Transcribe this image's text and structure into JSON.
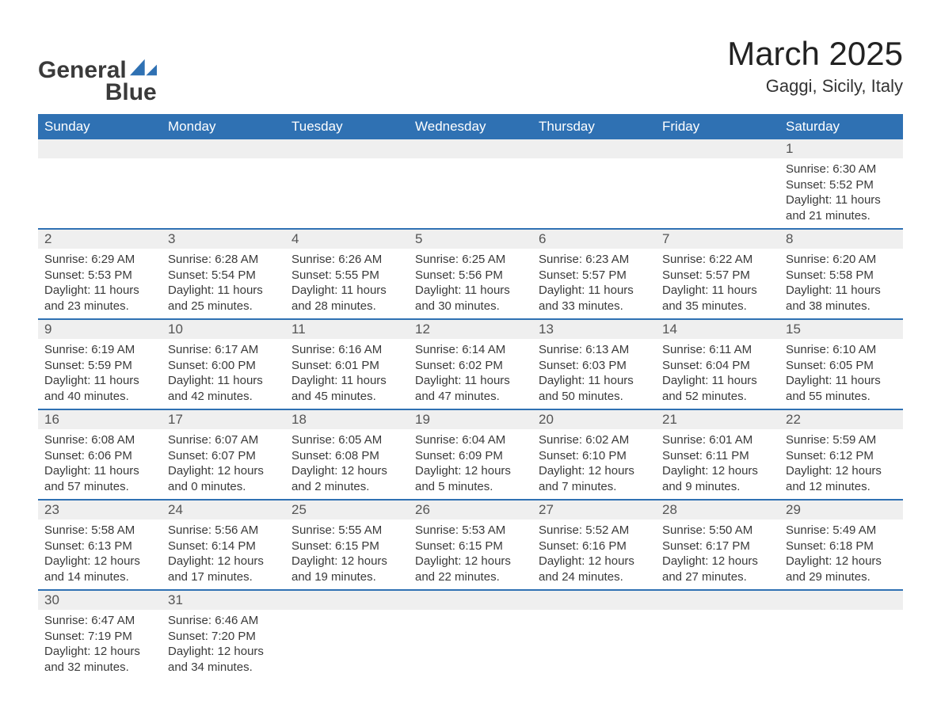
{
  "brand": {
    "name1": "General",
    "name2": "Blue"
  },
  "title": {
    "month": "March 2025",
    "location": "Gaggi, Sicily, Italy"
  },
  "colors": {
    "header_bg": "#2f71b3",
    "header_text": "#ffffff",
    "row_separator": "#2f71b3",
    "daynum_bg": "#efefef",
    "body_text": "#3a3a3a",
    "page_bg": "#ffffff"
  },
  "typography": {
    "month_fontsize": 42,
    "location_fontsize": 22,
    "header_fontsize": 17,
    "daynum_fontsize": 17,
    "body_fontsize": 15,
    "font_family": "Arial"
  },
  "day_headers": [
    "Sunday",
    "Monday",
    "Tuesday",
    "Wednesday",
    "Thursday",
    "Friday",
    "Saturday"
  ],
  "weeks": [
    [
      null,
      null,
      null,
      null,
      null,
      null,
      {
        "n": "1",
        "sr": "Sunrise: 6:30 AM",
        "ss": "Sunset: 5:52 PM",
        "dl1": "Daylight: 11 hours",
        "dl2": "and 21 minutes."
      }
    ],
    [
      {
        "n": "2",
        "sr": "Sunrise: 6:29 AM",
        "ss": "Sunset: 5:53 PM",
        "dl1": "Daylight: 11 hours",
        "dl2": "and 23 minutes."
      },
      {
        "n": "3",
        "sr": "Sunrise: 6:28 AM",
        "ss": "Sunset: 5:54 PM",
        "dl1": "Daylight: 11 hours",
        "dl2": "and 25 minutes."
      },
      {
        "n": "4",
        "sr": "Sunrise: 6:26 AM",
        "ss": "Sunset: 5:55 PM",
        "dl1": "Daylight: 11 hours",
        "dl2": "and 28 minutes."
      },
      {
        "n": "5",
        "sr": "Sunrise: 6:25 AM",
        "ss": "Sunset: 5:56 PM",
        "dl1": "Daylight: 11 hours",
        "dl2": "and 30 minutes."
      },
      {
        "n": "6",
        "sr": "Sunrise: 6:23 AM",
        "ss": "Sunset: 5:57 PM",
        "dl1": "Daylight: 11 hours",
        "dl2": "and 33 minutes."
      },
      {
        "n": "7",
        "sr": "Sunrise: 6:22 AM",
        "ss": "Sunset: 5:57 PM",
        "dl1": "Daylight: 11 hours",
        "dl2": "and 35 minutes."
      },
      {
        "n": "8",
        "sr": "Sunrise: 6:20 AM",
        "ss": "Sunset: 5:58 PM",
        "dl1": "Daylight: 11 hours",
        "dl2": "and 38 minutes."
      }
    ],
    [
      {
        "n": "9",
        "sr": "Sunrise: 6:19 AM",
        "ss": "Sunset: 5:59 PM",
        "dl1": "Daylight: 11 hours",
        "dl2": "and 40 minutes."
      },
      {
        "n": "10",
        "sr": "Sunrise: 6:17 AM",
        "ss": "Sunset: 6:00 PM",
        "dl1": "Daylight: 11 hours",
        "dl2": "and 42 minutes."
      },
      {
        "n": "11",
        "sr": "Sunrise: 6:16 AM",
        "ss": "Sunset: 6:01 PM",
        "dl1": "Daylight: 11 hours",
        "dl2": "and 45 minutes."
      },
      {
        "n": "12",
        "sr": "Sunrise: 6:14 AM",
        "ss": "Sunset: 6:02 PM",
        "dl1": "Daylight: 11 hours",
        "dl2": "and 47 minutes."
      },
      {
        "n": "13",
        "sr": "Sunrise: 6:13 AM",
        "ss": "Sunset: 6:03 PM",
        "dl1": "Daylight: 11 hours",
        "dl2": "and 50 minutes."
      },
      {
        "n": "14",
        "sr": "Sunrise: 6:11 AM",
        "ss": "Sunset: 6:04 PM",
        "dl1": "Daylight: 11 hours",
        "dl2": "and 52 minutes."
      },
      {
        "n": "15",
        "sr": "Sunrise: 6:10 AM",
        "ss": "Sunset: 6:05 PM",
        "dl1": "Daylight: 11 hours",
        "dl2": "and 55 minutes."
      }
    ],
    [
      {
        "n": "16",
        "sr": "Sunrise: 6:08 AM",
        "ss": "Sunset: 6:06 PM",
        "dl1": "Daylight: 11 hours",
        "dl2": "and 57 minutes."
      },
      {
        "n": "17",
        "sr": "Sunrise: 6:07 AM",
        "ss": "Sunset: 6:07 PM",
        "dl1": "Daylight: 12 hours",
        "dl2": "and 0 minutes."
      },
      {
        "n": "18",
        "sr": "Sunrise: 6:05 AM",
        "ss": "Sunset: 6:08 PM",
        "dl1": "Daylight: 12 hours",
        "dl2": "and 2 minutes."
      },
      {
        "n": "19",
        "sr": "Sunrise: 6:04 AM",
        "ss": "Sunset: 6:09 PM",
        "dl1": "Daylight: 12 hours",
        "dl2": "and 5 minutes."
      },
      {
        "n": "20",
        "sr": "Sunrise: 6:02 AM",
        "ss": "Sunset: 6:10 PM",
        "dl1": "Daylight: 12 hours",
        "dl2": "and 7 minutes."
      },
      {
        "n": "21",
        "sr": "Sunrise: 6:01 AM",
        "ss": "Sunset: 6:11 PM",
        "dl1": "Daylight: 12 hours",
        "dl2": "and 9 minutes."
      },
      {
        "n": "22",
        "sr": "Sunrise: 5:59 AM",
        "ss": "Sunset: 6:12 PM",
        "dl1": "Daylight: 12 hours",
        "dl2": "and 12 minutes."
      }
    ],
    [
      {
        "n": "23",
        "sr": "Sunrise: 5:58 AM",
        "ss": "Sunset: 6:13 PM",
        "dl1": "Daylight: 12 hours",
        "dl2": "and 14 minutes."
      },
      {
        "n": "24",
        "sr": "Sunrise: 5:56 AM",
        "ss": "Sunset: 6:14 PM",
        "dl1": "Daylight: 12 hours",
        "dl2": "and 17 minutes."
      },
      {
        "n": "25",
        "sr": "Sunrise: 5:55 AM",
        "ss": "Sunset: 6:15 PM",
        "dl1": "Daylight: 12 hours",
        "dl2": "and 19 minutes."
      },
      {
        "n": "26",
        "sr": "Sunrise: 5:53 AM",
        "ss": "Sunset: 6:15 PM",
        "dl1": "Daylight: 12 hours",
        "dl2": "and 22 minutes."
      },
      {
        "n": "27",
        "sr": "Sunrise: 5:52 AM",
        "ss": "Sunset: 6:16 PM",
        "dl1": "Daylight: 12 hours",
        "dl2": "and 24 minutes."
      },
      {
        "n": "28",
        "sr": "Sunrise: 5:50 AM",
        "ss": "Sunset: 6:17 PM",
        "dl1": "Daylight: 12 hours",
        "dl2": "and 27 minutes."
      },
      {
        "n": "29",
        "sr": "Sunrise: 5:49 AM",
        "ss": "Sunset: 6:18 PM",
        "dl1": "Daylight: 12 hours",
        "dl2": "and 29 minutes."
      }
    ],
    [
      {
        "n": "30",
        "sr": "Sunrise: 6:47 AM",
        "ss": "Sunset: 7:19 PM",
        "dl1": "Daylight: 12 hours",
        "dl2": "and 32 minutes."
      },
      {
        "n": "31",
        "sr": "Sunrise: 6:46 AM",
        "ss": "Sunset: 7:20 PM",
        "dl1": "Daylight: 12 hours",
        "dl2": "and 34 minutes."
      },
      null,
      null,
      null,
      null,
      null
    ]
  ]
}
